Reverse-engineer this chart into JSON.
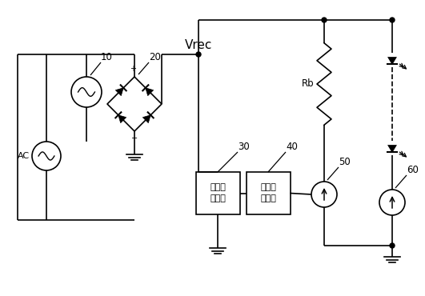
{
  "bg_color": "#ffffff",
  "vrec_label": "Vrec",
  "ac_label": "AC",
  "rb_label": "Rb",
  "box30_label": "电压检\n测模块",
  "box40_label": "电流控\n制模块",
  "label10": "10",
  "label20": "20",
  "label30": "30",
  "label40": "40",
  "label50": "50",
  "label60": "60"
}
